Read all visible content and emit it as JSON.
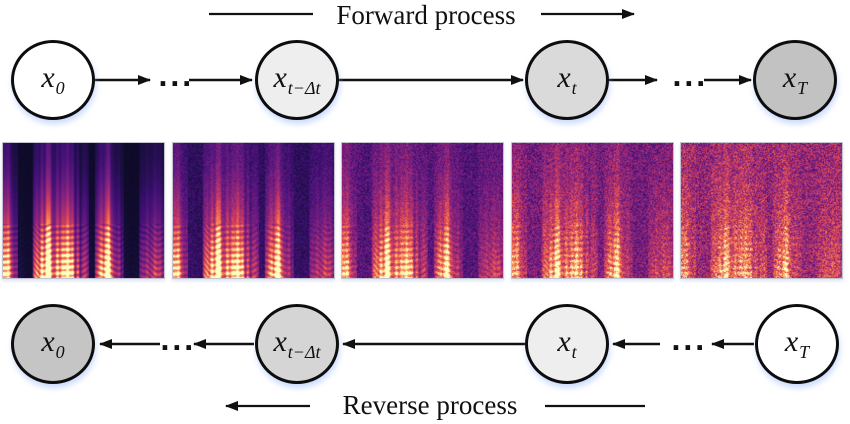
{
  "figure": {
    "forward": {
      "label": "Forward process",
      "dots_left": "...",
      "dots_right": "...",
      "nodes": [
        {
          "name": "x0",
          "base": "x",
          "sub": "0",
          "fill": "#ffffff"
        },
        {
          "name": "xt-minus-dt",
          "base": "x",
          "sub": "t−Δt",
          "fill": "#eeeeee"
        },
        {
          "name": "xt",
          "base": "x",
          "sub": "t",
          "fill": "#dadada"
        },
        {
          "name": "xT",
          "base": "x",
          "sub": "T",
          "fill": "#c2c2c2"
        }
      ]
    },
    "reverse": {
      "label": "Reverse process",
      "dots_left": "...",
      "dots_right": "...",
      "nodes": [
        {
          "name": "x0",
          "base": "x",
          "sub": "0",
          "fill": "#c5c5c5"
        },
        {
          "name": "xt-minus-dt",
          "base": "x",
          "sub": "t−Δt",
          "fill": "#d5d5d5"
        },
        {
          "name": "xt",
          "base": "x",
          "sub": "t",
          "fill": "#eeeeee"
        },
        {
          "name": "xT",
          "base": "x",
          "sub": "T",
          "fill": "#ffffff"
        }
      ]
    },
    "spectrograms": {
      "count": 5,
      "noise_levels": [
        0.04,
        0.22,
        0.4,
        0.58,
        0.75
      ],
      "colormap": "magma",
      "colormap_stops": [
        [
          0.0,
          [
            0,
            0,
            4
          ]
        ],
        [
          0.1,
          [
            20,
            14,
            54
          ]
        ],
        [
          0.2,
          [
            59,
            15,
            112
          ]
        ],
        [
          0.3,
          [
            98,
            25,
            128
          ]
        ],
        [
          0.4,
          [
            135,
            35,
            125
          ]
        ],
        [
          0.5,
          [
            172,
            47,
            113
          ]
        ],
        [
          0.6,
          [
            209,
            64,
            94
          ]
        ],
        [
          0.7,
          [
            237,
            94,
            77
          ]
        ],
        [
          0.8,
          [
            250,
            137,
            85
          ]
        ],
        [
          0.9,
          [
            253,
            183,
            118
          ]
        ],
        [
          1.0,
          [
            252,
            253,
            191
          ]
        ]
      ]
    },
    "colors": {
      "stroke": "#111111",
      "background": "#ffffff"
    }
  }
}
